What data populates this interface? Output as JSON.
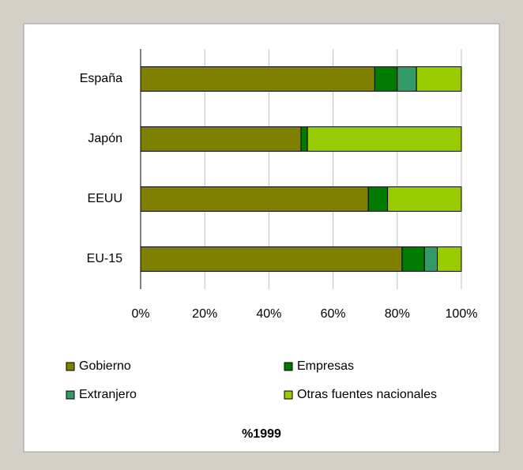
{
  "chart_data": {
    "type": "stacked-bar-horizontal",
    "title": "%1999",
    "categories": [
      "España",
      "Japón",
      "EEUU",
      "EU-15"
    ],
    "series": [
      {
        "name": "Gobierno",
        "color": "#808000",
        "values": [
          73,
          50,
          71,
          81.5
        ]
      },
      {
        "name": "Empresas",
        "color": "#007a00",
        "values": [
          7,
          2,
          6,
          7
        ]
      },
      {
        "name": "Extranjero",
        "color": "#339966",
        "values": [
          6,
          0,
          0,
          4
        ]
      },
      {
        "name": "Otras fuentes nacionales",
        "color": "#99cc00",
        "values": [
          14,
          48,
          23,
          7.5
        ]
      }
    ],
    "xlim": [
      0,
      100
    ],
    "xticks": [
      {
        "value": 0,
        "label": "0%"
      },
      {
        "value": 20,
        "label": "20%"
      },
      {
        "value": 40,
        "label": "40%"
      },
      {
        "value": 60,
        "label": "60%"
      },
      {
        "value": 80,
        "label": "80%"
      },
      {
        "value": 100,
        "label": "100%"
      }
    ],
    "grid": true
  }
}
